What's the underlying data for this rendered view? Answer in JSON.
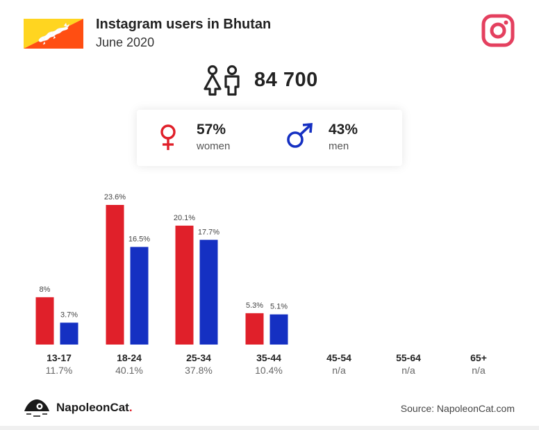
{
  "header": {
    "title": "Instagram users in Bhutan",
    "subtitle": "June 2020"
  },
  "total": {
    "value": "84 700"
  },
  "gender": {
    "women": {
      "pct": "57%",
      "label": "women",
      "color": "#e0202a"
    },
    "men": {
      "pct": "43%",
      "label": "men",
      "color": "#1530c2"
    }
  },
  "footer": {
    "brand": "NapoleonCat",
    "brand_dot": ".",
    "source": "Source: NapoleonCat.com"
  },
  "colors": {
    "women": "#e0202a",
    "men": "#1530c2",
    "instagram": "#e4405f",
    "flag_yellow": "#ffd520",
    "flag_orange": "#ff4e12"
  },
  "chart_data": {
    "type": "bar",
    "categories": [
      "13-17",
      "18-24",
      "25-34",
      "35-44",
      "45-54",
      "55-64",
      "65+"
    ],
    "totals": [
      "11.7%",
      "40.1%",
      "37.8%",
      "10.4%",
      "n/a",
      "n/a",
      "n/a"
    ],
    "series": [
      {
        "color": "#e0202a",
        "values": [
          8,
          23.6,
          20.1,
          5.3,
          null,
          null,
          null
        ],
        "labels": [
          "8%",
          "23.6%",
          "20.1%",
          "5.3%",
          "",
          "",
          ""
        ]
      },
      {
        "color": "#1530c2",
        "values": [
          3.7,
          16.5,
          17.7,
          5.1,
          null,
          null,
          null
        ],
        "labels": [
          "3.7%",
          "16.5%",
          "17.7%",
          "5.1%",
          "",
          "",
          ""
        ]
      }
    ],
    "ylim": [
      0,
      23.6
    ],
    "grid": false,
    "legend": "none"
  }
}
